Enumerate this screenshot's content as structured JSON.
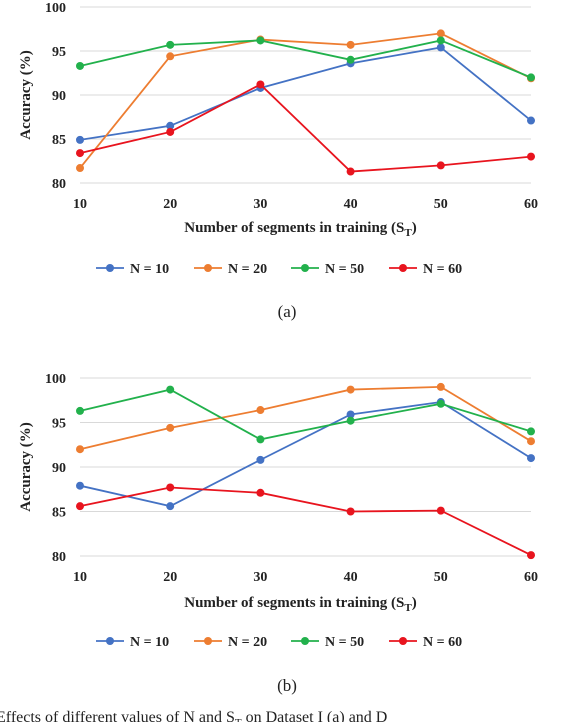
{
  "chart_data": [
    {
      "type": "line",
      "panel_label": "(a)",
      "x": [
        10,
        20,
        30,
        40,
        50,
        60
      ],
      "xlabel": "Number of segments in training (S",
      "xlabel_sub": "T",
      "xlabel_end": ")",
      "ylabel": "Accuracy (%)",
      "ylim": [
        80,
        100
      ],
      "yticks": [
        80,
        85,
        90,
        95,
        100
      ],
      "grid": "horizontal",
      "legend": "bottom",
      "series": [
        {
          "name": "N = 10",
          "color": "#4472C4",
          "values": [
            84.9,
            86.5,
            90.8,
            93.6,
            95.4,
            87.1
          ]
        },
        {
          "name": "N = 20",
          "color": "#ED7D31",
          "values": [
            81.7,
            94.4,
            96.3,
            95.7,
            97.0,
            91.9
          ]
        },
        {
          "name": "N = 50",
          "color": "#22B14C",
          "values": [
            93.3,
            95.7,
            96.2,
            94.0,
            96.2,
            92.0
          ]
        },
        {
          "name": "N = 60",
          "color": "#E8141E",
          "values": [
            83.4,
            85.8,
            91.2,
            81.3,
            82.0,
            83.0
          ]
        }
      ]
    },
    {
      "type": "line",
      "panel_label": "(b)",
      "x": [
        10,
        20,
        30,
        40,
        50,
        60
      ],
      "xlabel": "Number of segments in training (S",
      "xlabel_sub": "T",
      "xlabel_end": ")",
      "ylabel": "Accuracy (%)",
      "ylim": [
        80,
        100
      ],
      "yticks": [
        80,
        85,
        90,
        95,
        100
      ],
      "grid": "horizontal",
      "legend": "bottom",
      "series": [
        {
          "name": "N = 10",
          "color": "#4472C4",
          "values": [
            87.9,
            85.6,
            90.8,
            95.9,
            97.3,
            91.0
          ]
        },
        {
          "name": "N = 20",
          "color": "#ED7D31",
          "values": [
            92.0,
            94.4,
            96.4,
            98.7,
            99.0,
            92.9
          ]
        },
        {
          "name": "N = 50",
          "color": "#22B14C",
          "values": [
            96.3,
            98.7,
            93.1,
            95.2,
            97.1,
            94.0
          ]
        },
        {
          "name": "N = 60",
          "color": "#E8141E",
          "values": [
            85.6,
            87.7,
            87.1,
            85.0,
            85.1,
            80.1
          ]
        }
      ]
    }
  ],
  "caption_text": "Effects of different values of N and S",
  "caption_sub": "T",
  "caption_end": " on Dataset I (a) and D"
}
